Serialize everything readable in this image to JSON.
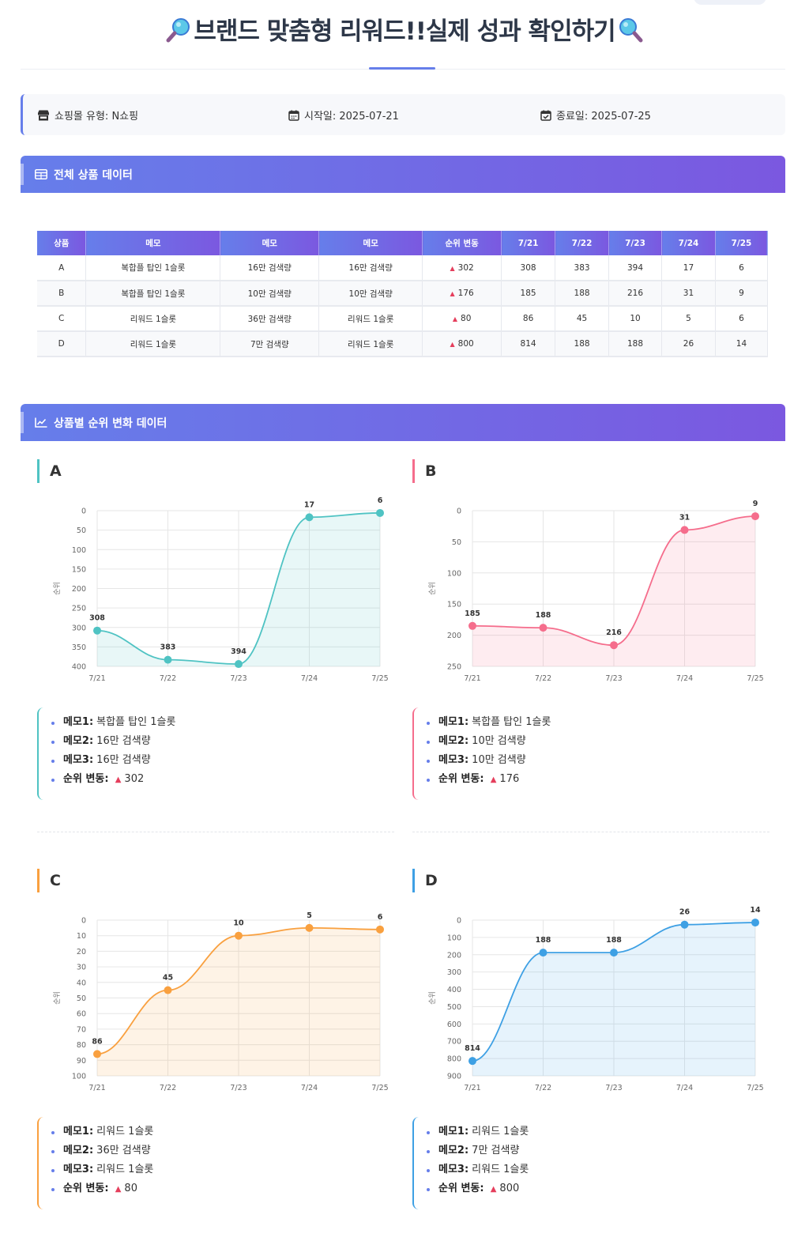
{
  "page": {
    "title": "브랜드 맞춤형 리워드!!실제 성과 확인하기"
  },
  "info": {
    "mall_type": "쇼핑몰 유형: N쇼핑",
    "start": "시작일: 2025-07-21",
    "end": "종료일: 2025-07-25"
  },
  "sections": {
    "table_title": "전체 상품 데이터",
    "charts_title": "상품별 순위 변화 데이터"
  },
  "table": {
    "headers": [
      "상품",
      "메모",
      "메모",
      "메모",
      "순위 변동",
      "7/21",
      "7/22",
      "7/23",
      "7/24",
      "7/25"
    ],
    "rows": [
      [
        "A",
        "복합플 탑인 1슬롯",
        "16만 검색량",
        "16만 검색량",
        "302",
        "308",
        "383",
        "394",
        "17",
        "6"
      ],
      [
        "B",
        "복합플 탑인 1슬롯",
        "10만 검색량",
        "10만 검색량",
        "176",
        "185",
        "188",
        "216",
        "31",
        "9"
      ],
      [
        "C",
        "리워드 1슬롯",
        "36만 검색량",
        "리워드 1슬롯",
        "80",
        "86",
        "45",
        "10",
        "5",
        "6"
      ],
      [
        "D",
        "리워드 1슬롯",
        "7만 검색량",
        "리워드 1슬롯",
        "800",
        "814",
        "188",
        "188",
        "26",
        "14"
      ]
    ]
  },
  "memo_labels": {
    "memo1": "메모1:",
    "memo2": "메모2:",
    "memo3": "메모3:",
    "rank_change": "순위 변동:"
  },
  "chart_data": [
    {
      "type": "area",
      "name": "A",
      "color": "#4fc3c3",
      "categories": [
        "7/21",
        "7/22",
        "7/23",
        "7/24",
        "7/25"
      ],
      "series": [
        {
          "values": [
            308,
            383,
            394,
            17,
            6
          ]
        }
      ],
      "ylabel": "순위",
      "ylim": [
        0,
        400
      ],
      "yticks": [
        0,
        50,
        100,
        150,
        200,
        250,
        300,
        350,
        400
      ],
      "y_reversed": true,
      "grid": true,
      "memo1": "복합플 탑인 1슬롯",
      "memo2": "16만 검색량",
      "memo3": "16만 검색량",
      "rank_change": "302"
    },
    {
      "type": "area",
      "name": "B",
      "color": "#f56d8c",
      "categories": [
        "7/21",
        "7/22",
        "7/23",
        "7/24",
        "7/25"
      ],
      "series": [
        {
          "values": [
            185,
            188,
            216,
            31,
            9
          ]
        }
      ],
      "ylabel": "순위",
      "ylim": [
        0,
        250
      ],
      "yticks": [
        0,
        50,
        100,
        150,
        200,
        250
      ],
      "y_reversed": true,
      "grid": true,
      "memo1": "복합플 탑인 1슬롯",
      "memo2": "10만 검색량",
      "memo3": "10만 검색량",
      "rank_change": "176"
    },
    {
      "type": "area",
      "name": "C",
      "color": "#f9a03f",
      "categories": [
        "7/21",
        "7/22",
        "7/23",
        "7/24",
        "7/25"
      ],
      "series": [
        {
          "values": [
            86,
            45,
            10,
            5,
            6
          ]
        }
      ],
      "ylabel": "순위",
      "ylim": [
        0,
        100
      ],
      "yticks": [
        0,
        10,
        20,
        30,
        40,
        50,
        60,
        70,
        80,
        90,
        100
      ],
      "y_reversed": true,
      "grid": true,
      "memo1": "리워드 1슬롯",
      "memo2": "36만 검색량",
      "memo3": "리워드 1슬롯",
      "rank_change": "80"
    },
    {
      "type": "area",
      "name": "D",
      "color": "#3ea0e4",
      "categories": [
        "7/21",
        "7/22",
        "7/23",
        "7/24",
        "7/25"
      ],
      "series": [
        {
          "values": [
            814,
            188,
            188,
            26,
            14
          ]
        }
      ],
      "ylabel": "순위",
      "ylim": [
        0,
        900
      ],
      "yticks": [
        0,
        100,
        200,
        300,
        400,
        500,
        600,
        700,
        800,
        900
      ],
      "y_reversed": true,
      "grid": true,
      "memo1": "리워드 1슬롯",
      "memo2": "7만 검색량",
      "memo3": "리워드 1슬롯",
      "rank_change": "800"
    }
  ]
}
